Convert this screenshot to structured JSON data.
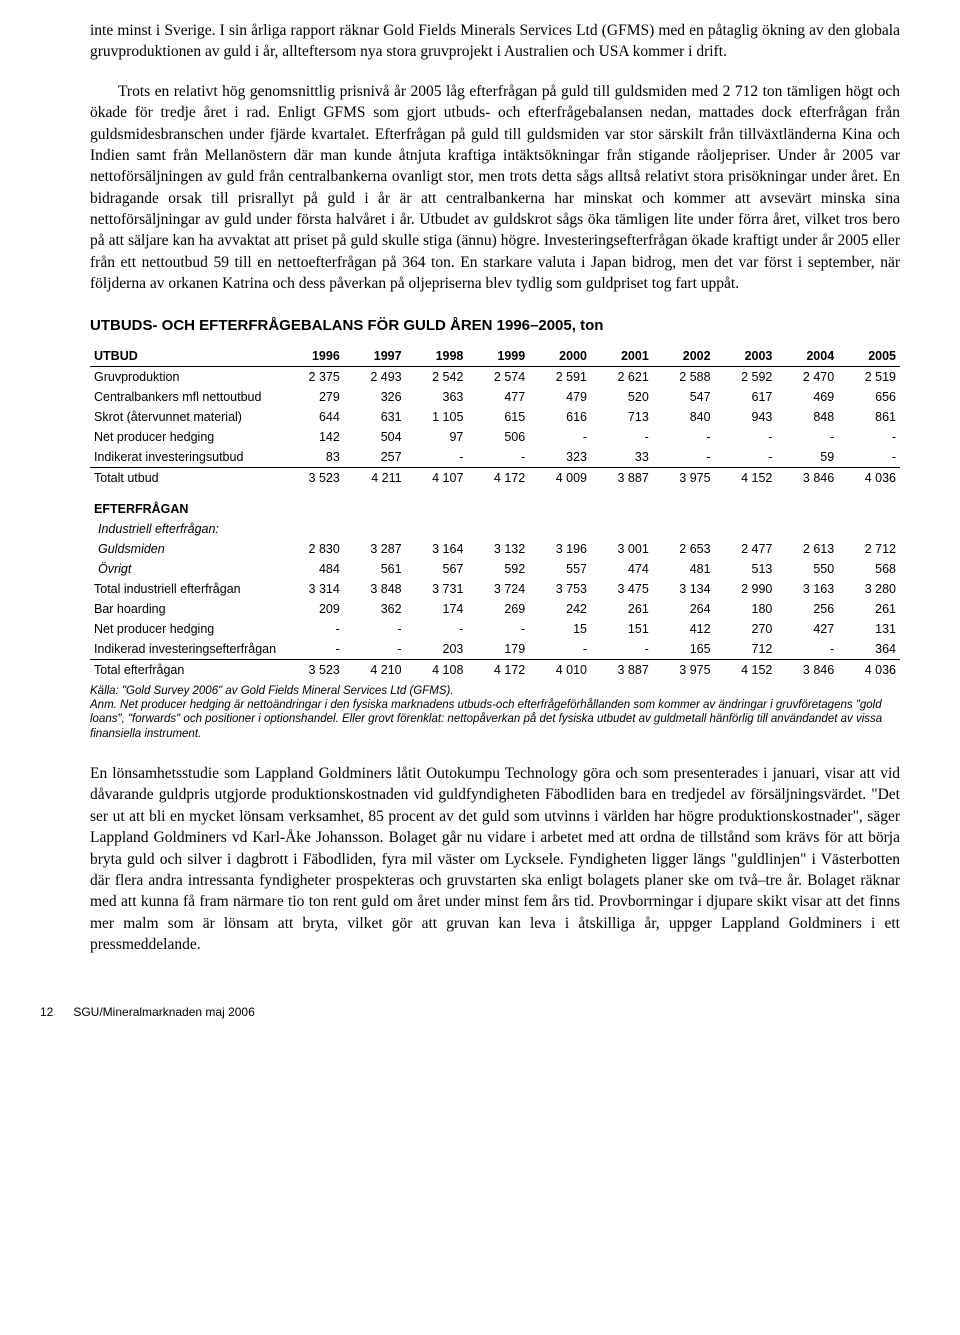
{
  "para1": "inte minst i Sverige. I sin årliga rapport räknar Gold Fields Minerals Services Ltd (GFMS) med en påtaglig ökning av den globala gruvproduktionen av guld i år, allteftersom nya stora gruvprojekt i Australien och USA kommer i drift.",
  "para2": "Trots en relativt hög genomsnittlig prisnivå år 2005 låg efterfrågan på guld till guldsmiden med 2 712 ton tämligen högt och ökade för tredje året i rad. Enligt GFMS som gjort utbuds- och efterfrågebalansen nedan, mattades dock efterfrågan från guldsmidesbranschen under fjärde kvartalet. Efterfrågan på guld till guldsmiden var stor särskilt från tillväxtländerna Kina och Indien samt från Mellanöstern där man kunde åtnjuta kraftiga intäktsökningar från stigande råoljepriser. Under år 2005 var nettoförsäljningen av guld från centralbankerna ovanligt stor, men trots detta sågs alltså relativt stora prisökningar under året. En bidragande orsak till prisrallyt på guld i år är att centralbankerna har minskat och kommer att avsevärt minska sina nettoförsäljningar av guld under första halvåret i år. Utbudet av guldskrot sågs öka tämligen lite under förra året, vilket tros bero på att säljare kan ha avvaktat att priset på guld skulle stiga (ännu) högre. Investeringsefterfrågan ökade kraftigt under år 2005 eller från ett nettoutbud 59 till en nettoefterfrågan på 364 ton. En starkare valuta i Japan bidrog, men det var först i september, när följderna av orkanen Katrina och dess påverkan på oljepriserna blev tydlig som guldpriset tog fart uppåt.",
  "heading": "UTBUDS- OCH EFTERFRÅGEBALANS FÖR GULD ÅREN 1996–2005, ton",
  "table": {
    "years": [
      "1996",
      "1997",
      "1998",
      "1999",
      "2000",
      "2001",
      "2002",
      "2003",
      "2004",
      "2005"
    ],
    "utbud_label": "UTBUD",
    "utbud_rows": [
      {
        "label": "Gruvproduktion",
        "vals": [
          "2 375",
          "2 493",
          "2 542",
          "2 574",
          "2 591",
          "2 621",
          "2 588",
          "2 592",
          "2 470",
          "2 519"
        ]
      },
      {
        "label": "Centralbankers mfl nettoutbud",
        "vals": [
          "279",
          "326",
          "363",
          "477",
          "479",
          "520",
          "547",
          "617",
          "469",
          "656"
        ]
      },
      {
        "label": "Skrot (återvunnet material)",
        "vals": [
          "644",
          "631",
          "1 105",
          "615",
          "616",
          "713",
          "840",
          "943",
          "848",
          "861"
        ]
      },
      {
        "label": "Net producer hedging",
        "vals": [
          "142",
          "504",
          "97",
          "506",
          "-",
          "-",
          "-",
          "-",
          "-",
          "-"
        ]
      },
      {
        "label": "Indikerat investeringsutbud",
        "vals": [
          "83",
          "257",
          "-",
          "-",
          "323",
          "33",
          "-",
          "-",
          "59",
          "-"
        ]
      }
    ],
    "utbud_total": {
      "label": "Totalt utbud",
      "vals": [
        "3 523",
        "4 211",
        "4 107",
        "4 172",
        "4 009",
        "3 887",
        "3 975",
        "4 152",
        "3 846",
        "4 036"
      ]
    },
    "efterfragan_label": "EFTERFRÅGAN",
    "ind_sub": "Industriell efterfrågan:",
    "ef_rows1": [
      {
        "label": "Guldsmiden",
        "vals": [
          "2 830",
          "3 287",
          "3 164",
          "3 132",
          "3 196",
          "3 001",
          "2 653",
          "2 477",
          "2 613",
          "2 712"
        ],
        "italic": true
      },
      {
        "label": "Övrigt",
        "vals": [
          "484",
          "561",
          "567",
          "592",
          "557",
          "474",
          "481",
          "513",
          "550",
          "568"
        ],
        "italic": true
      }
    ],
    "ef_rows2": [
      {
        "label": "Total industriell efterfrågan",
        "vals": [
          "3 314",
          "3 848",
          "3 731",
          "3 724",
          "3 753",
          "3 475",
          "3 134",
          "2 990",
          "3 163",
          "3 280"
        ]
      },
      {
        "label": "Bar hoarding",
        "vals": [
          "209",
          "362",
          "174",
          "269",
          "242",
          "261",
          "264",
          "180",
          "256",
          "261"
        ]
      },
      {
        "label": "Net producer hedging",
        "vals": [
          "-",
          "-",
          "-",
          "-",
          "15",
          "151",
          "412",
          "270",
          "427",
          "131"
        ]
      },
      {
        "label": "Indikerad investeringsefterfrågan",
        "vals": [
          "-",
          "-",
          "203",
          "179",
          "-",
          "-",
          "165",
          "712",
          "-",
          "364"
        ]
      }
    ],
    "ef_total": {
      "label": "Total efterfrågan",
      "vals": [
        "3 523",
        "4 210",
        "4 108",
        "4 172",
        "4 010",
        "3 887",
        "3 975",
        "4 152",
        "3 846",
        "4 036"
      ]
    }
  },
  "footnote": "Källa: \"Gold Survey 2006\" av Gold Fields Mineral Services Ltd (GFMS).\nAnm. Net producer hedging är nettoändringar i den fysiska marknadens utbuds-och efterfrågeförhållanden som kommer av ändringar i gruvföretagens \"gold loans\", \"forwards\" och positioner i optionshandel. Eller grovt förenklat: nettopåverkan på det fysiska utbudet av guldmetall hänförlig till användandet av vissa finansiella instrument.",
  "para3": "En lönsamhetsstudie som Lappland Goldminers låtit Outokumpu Technology göra och som presenterades i januari, visar att vid dåvarande guldpris utgjorde produktionskostnaden vid guldfyndigheten Fäbodliden bara en tredjedel av försäljningsvärdet. \"Det ser ut att bli en mycket lönsam verksamhet, 85 procent av det guld som utvinns i världen har högre produktionskostnader\", säger Lappland Goldminers vd Karl-Åke Johansson. Bolaget går nu vidare i arbetet med att ordna de tillstånd som krävs för att börja bryta guld och silver i dagbrott i Fäbodliden, fyra mil väster om Lycksele. Fyndigheten ligger längs \"guldlinjen\" i Västerbotten där flera andra intressanta fyndigheter prospekteras och gruvstarten ska enligt bolagets planer ske om två–tre år. Bolaget räknar med att kunna få fram närmare tio ton rent guld om året under minst fem års tid. Provborrningar i djupare skikt visar att det finns mer malm som är lönsam att bryta, vilket gör att gruvan kan leva i åtskilliga år, uppger Lappland Goldminers i ett pressmeddelande.",
  "footer_pagenum": "12",
  "footer_text": "SGU/Mineralmarknaden maj 2006"
}
